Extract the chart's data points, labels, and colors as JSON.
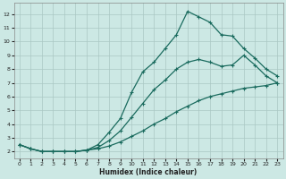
{
  "xlabel": "Humidex (Indice chaleur)",
  "background_color": "#cce8e4",
  "grid_color": "#aac8c4",
  "line_color": "#1a6b5e",
  "xlim": [
    -0.5,
    23.5
  ],
  "ylim": [
    1.5,
    12.8
  ],
  "yticks": [
    2,
    3,
    4,
    5,
    6,
    7,
    8,
    9,
    10,
    11,
    12
  ],
  "xticks": [
    0,
    1,
    2,
    3,
    4,
    5,
    6,
    7,
    8,
    9,
    10,
    11,
    12,
    13,
    14,
    15,
    16,
    17,
    18,
    19,
    20,
    21,
    22,
    23
  ],
  "curve1_x": [
    0,
    1,
    2,
    3,
    4,
    5,
    6,
    7,
    8,
    9,
    10,
    11,
    12,
    13,
    14,
    15,
    16,
    17,
    18,
    19,
    20,
    21,
    22,
    23
  ],
  "curve1_y": [
    2.5,
    2.2,
    2.0,
    2.0,
    2.0,
    2.0,
    2.1,
    2.2,
    2.4,
    2.7,
    3.1,
    3.5,
    4.0,
    4.4,
    4.9,
    5.3,
    5.7,
    6.0,
    6.2,
    6.4,
    6.6,
    6.7,
    6.8,
    7.0
  ],
  "curve2_x": [
    0,
    1,
    2,
    3,
    4,
    5,
    6,
    7,
    8,
    9,
    10,
    11,
    12,
    13,
    14,
    15,
    16,
    17,
    18,
    19,
    20,
    21,
    22,
    23
  ],
  "curve2_y": [
    2.5,
    2.2,
    2.0,
    2.0,
    2.0,
    2.0,
    2.1,
    2.3,
    2.8,
    3.5,
    4.5,
    5.5,
    6.5,
    7.2,
    8.0,
    8.5,
    8.7,
    8.5,
    8.2,
    8.3,
    9.0,
    8.3,
    7.5,
    7.0
  ],
  "curve3_x": [
    0,
    1,
    2,
    3,
    4,
    5,
    6,
    7,
    8,
    9,
    10,
    11,
    12,
    13,
    14,
    15,
    16,
    17,
    18,
    19,
    20,
    21,
    22,
    23
  ],
  "curve3_y": [
    2.5,
    2.2,
    2.0,
    2.0,
    2.0,
    2.0,
    2.1,
    2.5,
    3.4,
    4.4,
    6.3,
    7.8,
    8.5,
    9.5,
    10.5,
    12.2,
    11.8,
    11.4,
    10.5,
    10.4,
    9.5,
    8.8,
    8.0,
    7.5
  ]
}
